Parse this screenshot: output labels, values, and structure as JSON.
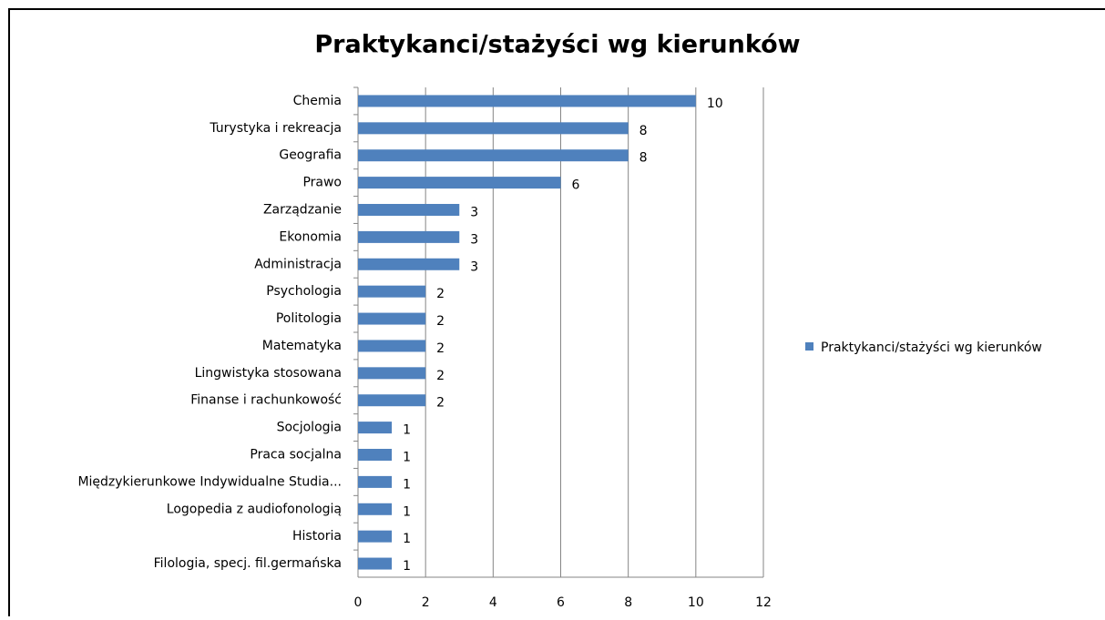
{
  "chart_data": {
    "type": "bar",
    "orientation": "horizontal",
    "title": "Praktykanci/stażyści wg kierunków",
    "categories": [
      "Chemia",
      "Turystyka i rekreacja",
      "Geografia",
      "Prawo",
      "Zarządzanie",
      "Ekonomia",
      "Administracja",
      "Psychologia",
      "Politologia",
      "Matematyka",
      "Lingwistyka stosowana",
      "Finanse i rachunkowość",
      "Socjologia",
      "Praca socjalna",
      "Międzykierunkowe Indywidualne Studia...",
      "Logopedia z audiofonologią",
      "Historia",
      "Filologia, specj. fil.germańska"
    ],
    "series": [
      {
        "name": "Praktykanci/stażyści wg kierunków",
        "color": "#4f81bd",
        "values": [
          10,
          8,
          8,
          6,
          3,
          3,
          3,
          2,
          2,
          2,
          2,
          2,
          1,
          1,
          1,
          1,
          1,
          1
        ]
      }
    ],
    "xlim": [
      0,
      12
    ],
    "xticks": [
      0,
      2,
      4,
      6,
      8,
      10,
      12
    ],
    "grid": true,
    "legend": "right"
  }
}
